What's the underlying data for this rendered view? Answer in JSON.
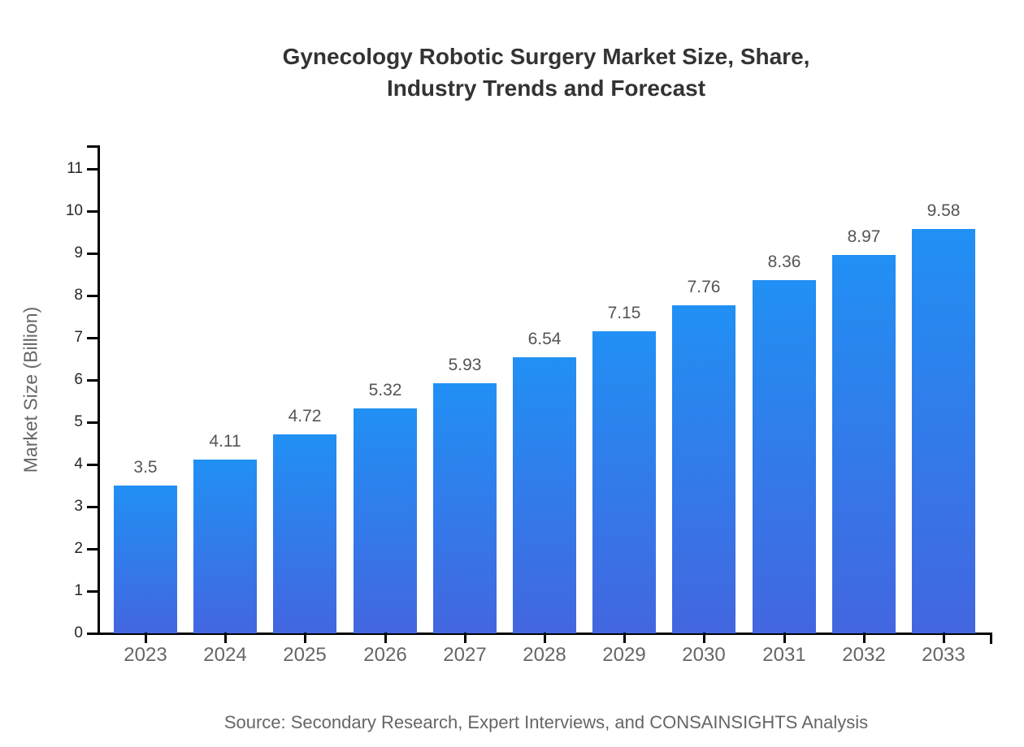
{
  "title": {
    "line1": "Gynecology Robotic Surgery Market Size, Share,",
    "line2": "Industry Trends and Forecast"
  },
  "source": "Source: Secondary Research, Expert Interviews, and CONSAINSIGHTS Analysis",
  "chart_data": {
    "type": "bar",
    "title": "Gynecology Robotic Surgery Market Size, Share, Industry Trends and Forecast",
    "categories": [
      "2023",
      "2024",
      "2025",
      "2026",
      "2027",
      "2028",
      "2029",
      "2030",
      "2031",
      "2032",
      "2033"
    ],
    "values": [
      3.5,
      4.11,
      4.72,
      5.32,
      5.93,
      6.54,
      7.15,
      7.76,
      8.36,
      8.97,
      9.58
    ],
    "value_labels": [
      "3.5",
      "4.11",
      "4.72",
      "5.32",
      "5.93",
      "6.54",
      "7.15",
      "7.76",
      "8.36",
      "8.97",
      "9.58"
    ],
    "xlabel": "",
    "ylabel": "Market Size (Billion)",
    "ylim": [
      0,
      11
    ],
    "y_ticks": [
      0,
      1,
      2,
      3,
      4,
      5,
      6,
      7,
      8,
      9,
      10,
      11
    ],
    "grid": false,
    "legend": false,
    "bar_gradient_top": "#2190F4",
    "bar_gradient_bottom": "#4366E0",
    "axis_color": "#000000",
    "value_label_color": "#555555",
    "tick_label_color": "#262626",
    "category_label_color": "#666666"
  }
}
